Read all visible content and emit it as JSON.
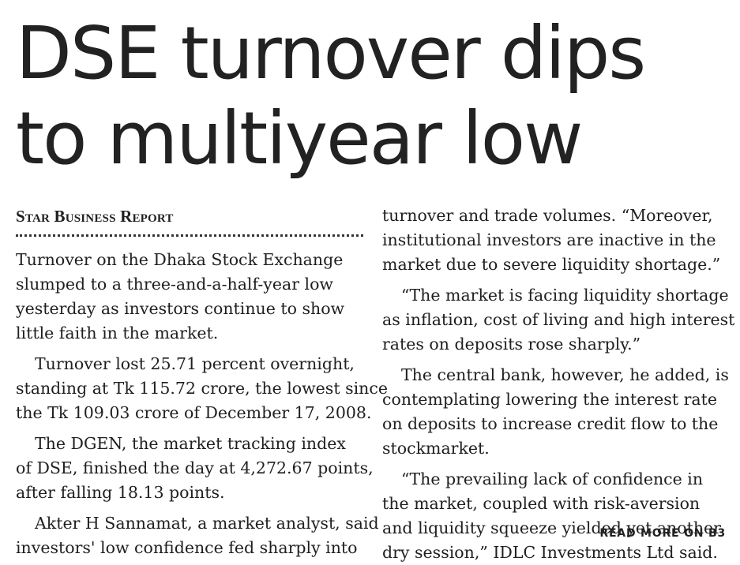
{
  "headline": {
    "line1": "DSE turnover dips",
    "line2": "to multiyear low"
  },
  "byline": "Star Business Report",
  "left_column": [
    {
      "lines": [
        "Turnover on the Dhaka Stock Exchange",
        "slumped to a three-and-a-half-year low",
        "yesterday as investors continue to show",
        "little faith in the market."
      ]
    },
    {
      "lines": [
        "Turnover lost 25.71 percent overnight,",
        "standing at Tk 115.72 crore, the lowest since",
        "the Tk 109.03 crore of December 17, 2008."
      ]
    },
    {
      "lines": [
        "The DGEN, the market tracking index",
        "of DSE, finished the day at 4,272.67 points,",
        "after falling 18.13 points."
      ]
    },
    {
      "lines": [
        "Akter H Sannamat, a market analyst, said",
        "investors' low confidence fed sharply into"
      ]
    }
  ],
  "right_column": [
    {
      "lines": [
        "turnover and trade volumes. “Moreover,",
        "institutional investors are inactive in the",
        "market due to severe liquidity shortage.”"
      ]
    },
    {
      "lines": [
        "“The market is facing liquidity shortage",
        "as inflation, cost of living and high interest",
        "rates on deposits rose sharply.”"
      ]
    },
    {
      "lines": [
        "The central bank, however, he added, is",
        "contemplating lowering the interest rate",
        "on deposits to increase credit flow to the",
        "stockmarket."
      ]
    },
    {
      "lines": [
        "“The prevailing lack of confidence in",
        "the market, coupled with risk-aversion",
        "and liquidity squeeze yielded yet another",
        "dry session,” IDLC Investments Ltd said."
      ]
    }
  ],
  "read_more": "READ MORE ON B3"
}
